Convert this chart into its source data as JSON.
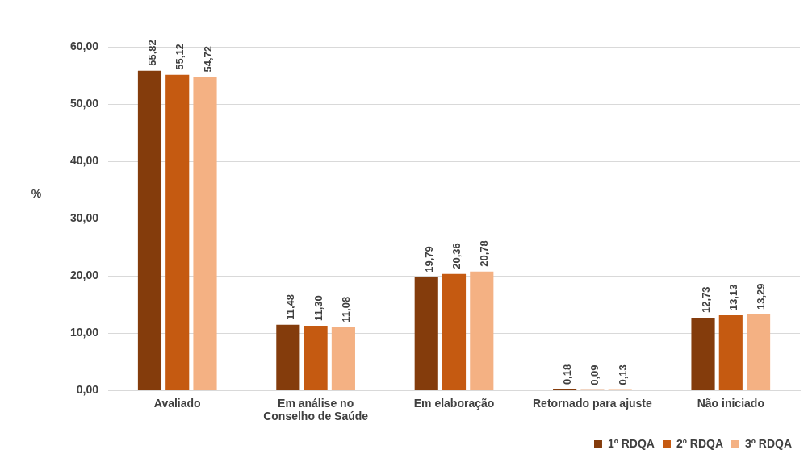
{
  "chart_data": {
    "type": "bar",
    "ylabel": "%",
    "categories": [
      "Avaliado",
      "Em análise no Conselho de Saúde",
      "Em elaboração",
      "Retornado para ajuste",
      "Não iniciado"
    ],
    "series": [
      {
        "name": "1º RDQA",
        "color": "#843c0c",
        "values": [
          55.82,
          11.48,
          19.79,
          0.18,
          12.73
        ],
        "value_labels": [
          "55,82",
          "11,48",
          "19,79",
          "0,18",
          "12,73"
        ]
      },
      {
        "name": "2º RDQA",
        "color": "#c55a11",
        "values": [
          55.12,
          11.3,
          20.36,
          0.09,
          13.13
        ],
        "value_labels": [
          "55,12",
          "11,30",
          "20,36",
          "0,09",
          "13,13"
        ]
      },
      {
        "name": "3º RDQA",
        "color": "#f4b183",
        "values": [
          54.72,
          11.08,
          20.78,
          0.13,
          13.29
        ],
        "value_labels": [
          "54,72",
          "11,08",
          "20,78",
          "0,13",
          "13,29"
        ]
      }
    ],
    "ylim": [
      0,
      60
    ],
    "yticks": [
      {
        "value": 0,
        "label": "0,00"
      },
      {
        "value": 10,
        "label": "10,00"
      },
      {
        "value": 20,
        "label": "20,00"
      },
      {
        "value": 30,
        "label": "30,00"
      },
      {
        "value": 40,
        "label": "40,00"
      },
      {
        "value": 50,
        "label": "50,00"
      },
      {
        "value": 60,
        "label": "60,00"
      }
    ],
    "grid": "y",
    "legend": "bottom right"
  }
}
